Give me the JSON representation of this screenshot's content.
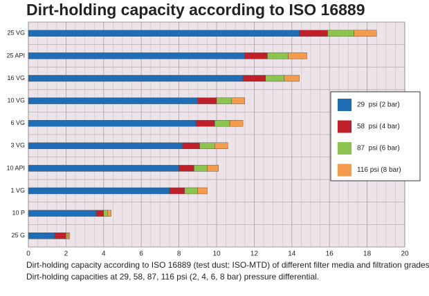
{
  "chart_data": {
    "type": "bar",
    "orientation": "horizontal",
    "stacked": true,
    "title": "Dirt-holding capacity according to ISO 16889",
    "caption": [
      "Dirt-holding capacity according to ISO 16889 (test dust: ISO-MTD) of different filter media and filtration grades.",
      "Dirt-holding capacities at 29, 58, 87, 116 psi (2, 4, 6, 8 bar) pressure differential."
    ],
    "categories": [
      "25 VG",
      "25 API",
      "16 VG",
      "10 VG",
      "6 VG",
      "3 VG",
      "10 API",
      "1 VG",
      "10 P",
      "25 G"
    ],
    "series": [
      {
        "name": "29  psi (2 bar)",
        "color": "#1f6db5",
        "values": [
          14.4,
          11.5,
          11.4,
          9.0,
          8.9,
          8.2,
          8.0,
          7.5,
          3.6,
          1.4
        ]
      },
      {
        "name": "58  psi (4 bar)",
        "color": "#c0202a",
        "values": [
          1.5,
          1.2,
          1.2,
          1.0,
          1.0,
          0.9,
          0.8,
          0.8,
          0.4,
          0.6
        ]
      },
      {
        "name": "87  psi (6 bar)",
        "color": "#8dc44f",
        "values": [
          1.4,
          1.1,
          1.0,
          0.8,
          0.8,
          0.8,
          0.7,
          0.7,
          0.2,
          0.1
        ]
      },
      {
        "name": "116 psi (8 bar)",
        "color": "#f59c4c",
        "values": [
          1.2,
          1.0,
          0.8,
          0.7,
          0.7,
          0.7,
          0.6,
          0.5,
          0.2,
          0.1
        ]
      }
    ],
    "xlim": [
      0,
      20
    ],
    "xticks": [
      0,
      2,
      4,
      6,
      8,
      10,
      12,
      14,
      16,
      18,
      20
    ],
    "grid": true
  }
}
